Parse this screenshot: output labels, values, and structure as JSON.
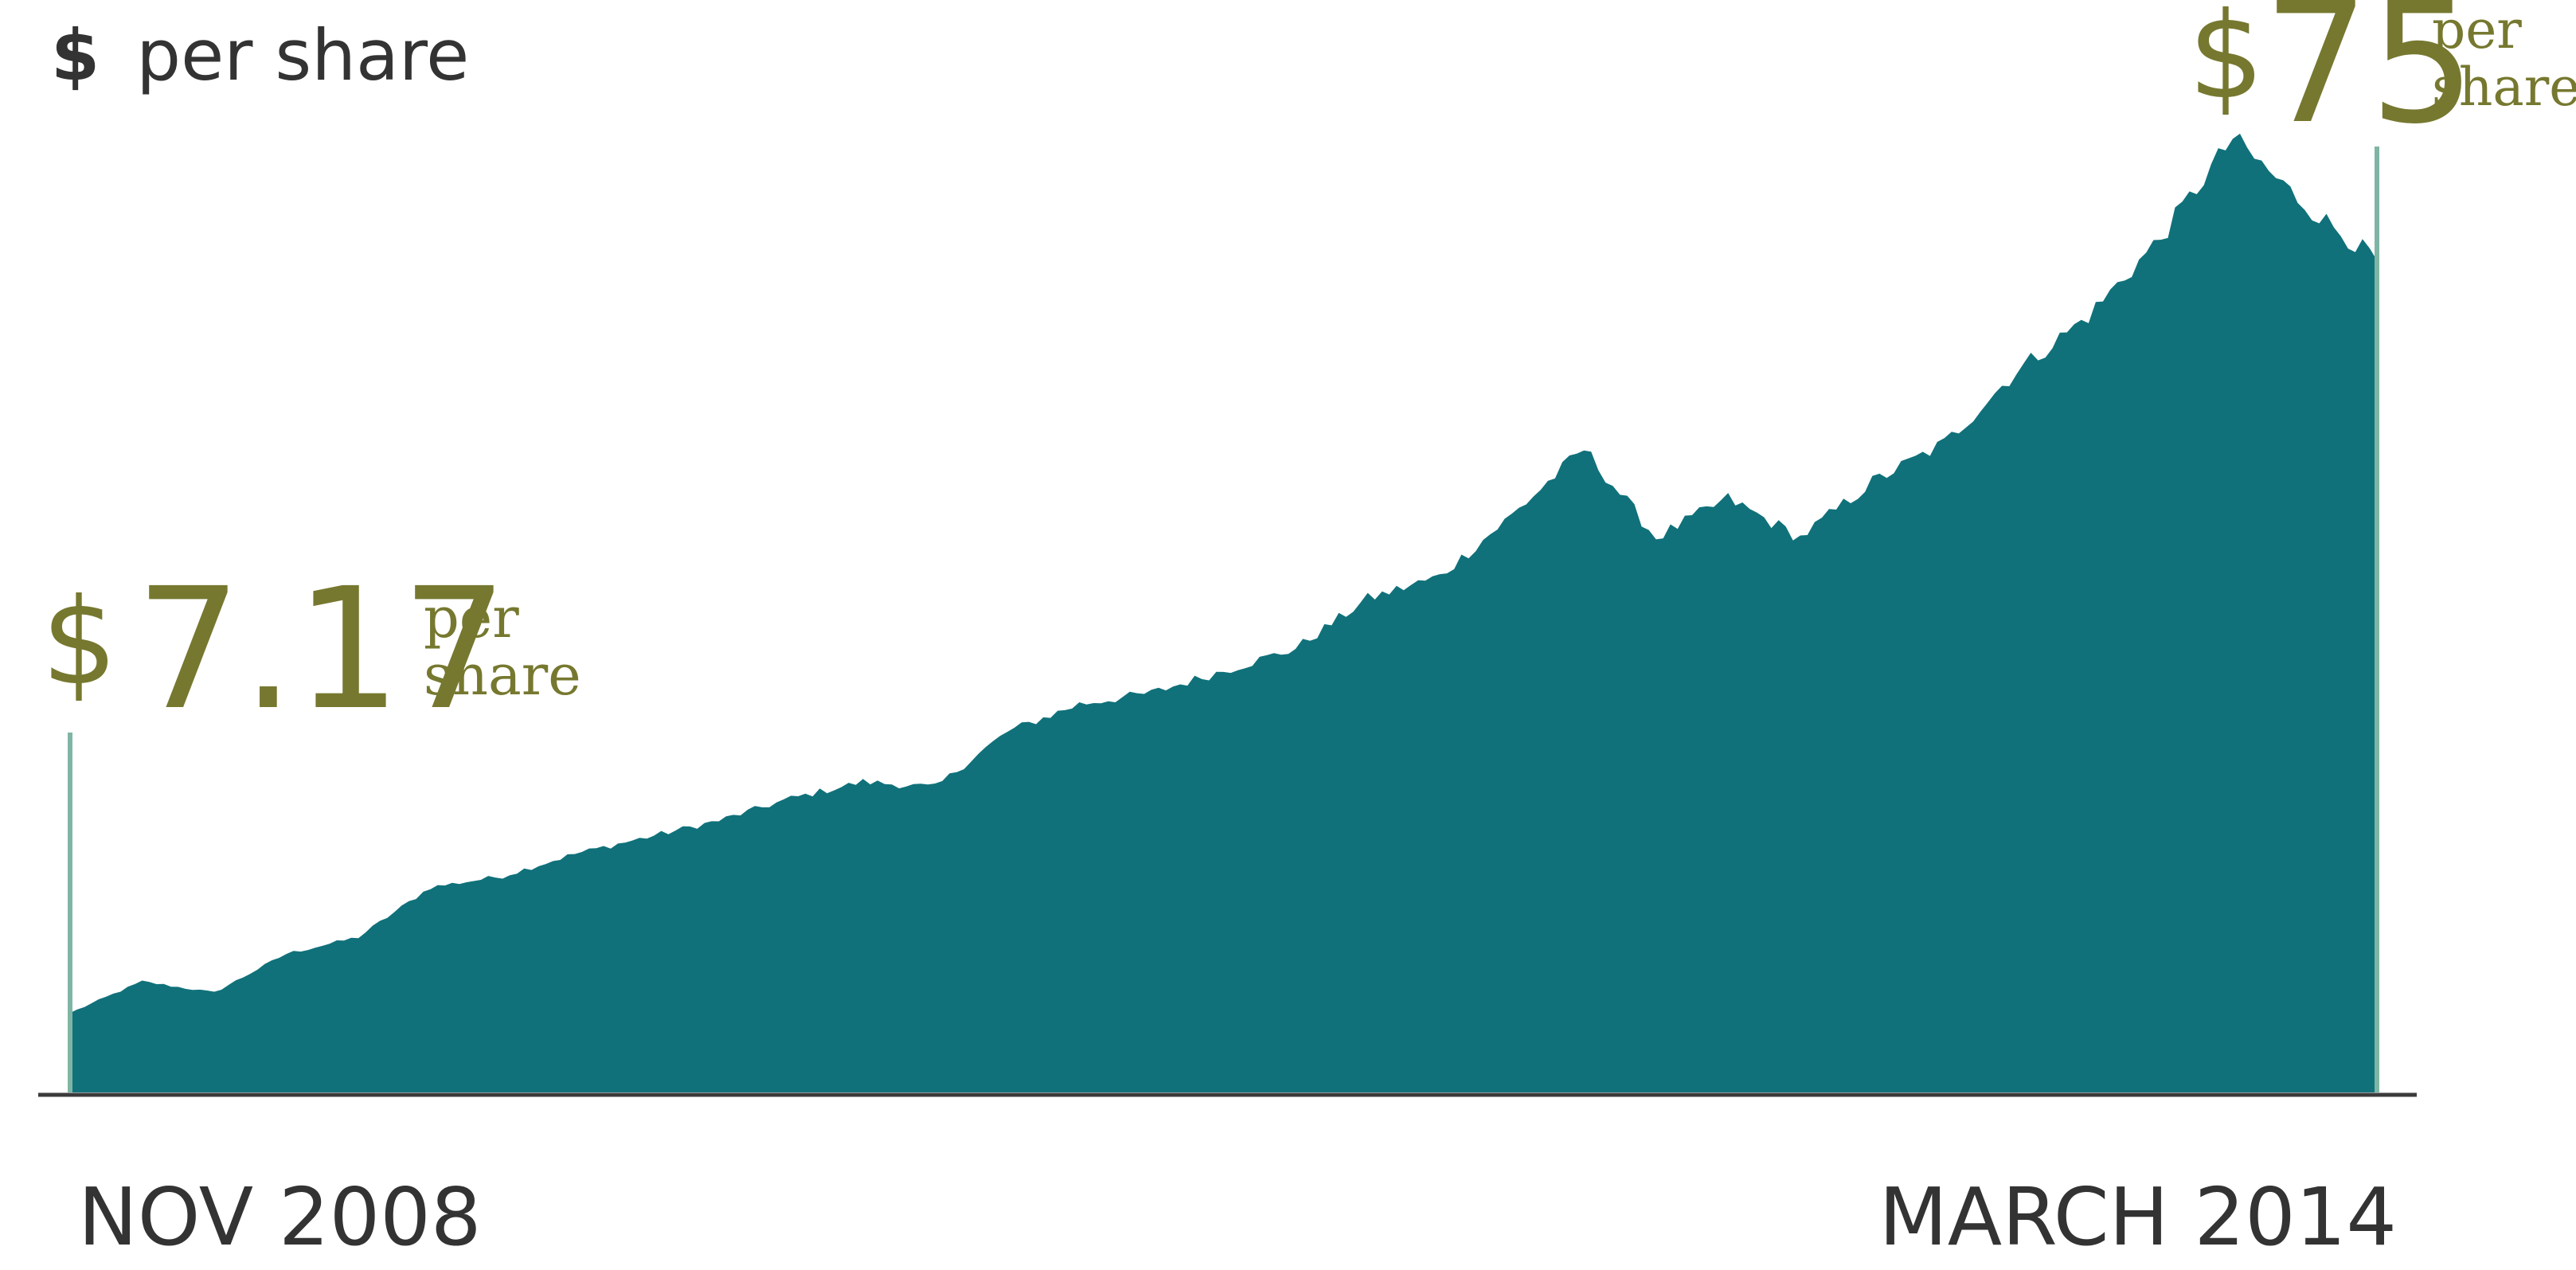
{
  "unit_label": {
    "symbol": "$",
    "text": "per share"
  },
  "start_callout": {
    "currency": "$",
    "value": "7.17",
    "unit_line1": "per",
    "unit_line2": "share"
  },
  "end_callout": {
    "currency": "$",
    "value": "75",
    "unit_line1": "per",
    "unit_line2": "share"
  },
  "x_labels": {
    "start": "NOV 2008",
    "end": "MARCH 2014"
  },
  "colors": {
    "area": "#10717a",
    "accent": "#76782f",
    "marker": "#7fb5a4",
    "axis": "#3b3b3b",
    "text": "#333333"
  },
  "chart_data": {
    "type": "area",
    "title": "",
    "xlabel": "",
    "ylabel": "$ per share",
    "x_start": "NOV 2008",
    "x_end": "MARCH 2014",
    "ylim": [
      0,
      92
    ],
    "grid": false,
    "legend": "none",
    "series": [
      {
        "x": [
          "2008-11",
          "2009-01",
          "2009-03",
          "2009-05",
          "2009-07",
          "2009-09",
          "2009-11",
          "2010-01",
          "2010-03",
          "2010-05",
          "2010-07",
          "2010-09",
          "2010-11",
          "2011-01",
          "2011-03",
          "2011-05",
          "2011-07",
          "2011-09",
          "2011-11",
          "2012-01",
          "2012-03",
          "2012-05",
          "2012-07",
          "2012-09",
          "2012-11",
          "2013-01",
          "2013-03",
          "2013-05",
          "2013-07",
          "2013-09",
          "2013-11",
          "2014-01",
          "2014-03"
        ],
        "values": [
          7.17,
          10.0,
          9.0,
          12.5,
          14.0,
          18.5,
          19.5,
          21.5,
          23.0,
          24.5,
          26.5,
          28.0,
          27.5,
          32.5,
          35.0,
          36.0,
          38.0,
          40.0,
          44.5,
          46.5,
          52.0,
          58.0,
          50.0,
          53.5,
          50.0,
          55.0,
          58.5,
          65.0,
          70.0,
          77.0,
          86.0,
          80.0,
          75.0
        ]
      }
    ]
  }
}
